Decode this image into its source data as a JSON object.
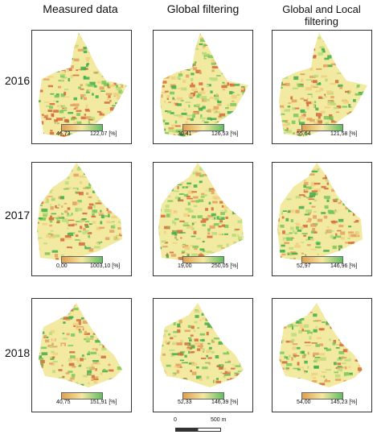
{
  "columns": [
    "Measured data",
    "Global filtering",
    "Global and Local\nfiltering"
  ],
  "years": [
    "2016",
    "2017",
    "2018"
  ],
  "legends": [
    [
      {
        "min": "46,73",
        "max": "122,07 [%]"
      },
      {
        "min": "30,41",
        "max": "126,53 [%]"
      },
      {
        "min": "55,64",
        "max": "121,58 [%]"
      }
    ],
    [
      {
        "min": "0,00",
        "max": "1003,10 [%]"
      },
      {
        "min": "19,00",
        "max": "250,05 [%]"
      },
      {
        "min": "52,97",
        "max": "146,96 [%]"
      }
    ],
    [
      {
        "min": "40,75",
        "max": "151,91 [%]"
      },
      {
        "min": "52,33",
        "max": "146,39 [%]"
      },
      {
        "min": "54,00",
        "max": "145,23 [%]"
      }
    ]
  ],
  "scale": {
    "zero": "0",
    "length": "500 m"
  },
  "colors": {
    "low": "#d46a3a",
    "mid": "#f6e8a0",
    "high": "#3fae4a"
  }
}
